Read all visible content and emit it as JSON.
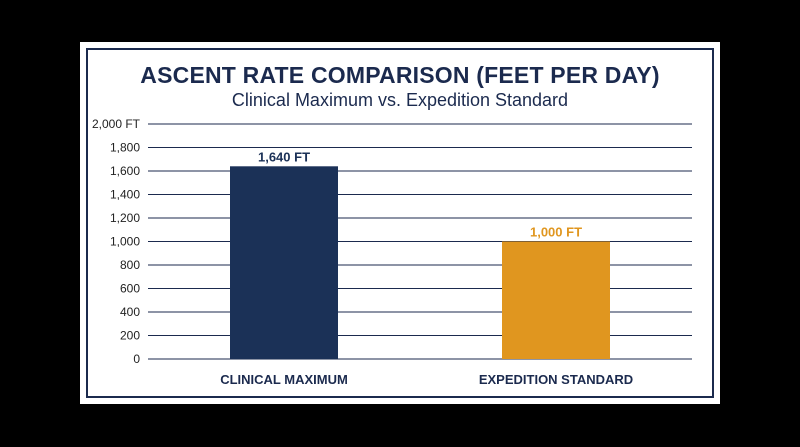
{
  "colors": {
    "frame": "#1b2a4e",
    "grid": "#1b2a4e",
    "bar_primary": "#1b3157",
    "bar_secondary": "#e0961f"
  },
  "chart_data": {
    "type": "bar",
    "title": "ASCENT RATE COMPARISON (FEET PER DAY)",
    "subtitle": "Clinical Maximum vs. Expedition Standard",
    "categories": [
      "CLINICAL MAXIMUM",
      "EXPEDITION STANDARD"
    ],
    "values": [
      1640,
      1000
    ],
    "data_labels": [
      "1,640 FT",
      "1,000 FT"
    ],
    "bar_colors": [
      "#1b3157",
      "#e0961f"
    ],
    "ylim": [
      0,
      2000
    ],
    "yticks": [
      0,
      200,
      400,
      600,
      800,
      1000,
      1200,
      1400,
      1600,
      1800,
      2000
    ],
    "ytick_labels": [
      "0",
      "200",
      "400",
      "600",
      "800",
      "1,000",
      "1,200",
      "1,400",
      "1,600",
      "1,800",
      "2,000 FT"
    ],
    "grid": true,
    "xlabel": "",
    "ylabel": ""
  }
}
